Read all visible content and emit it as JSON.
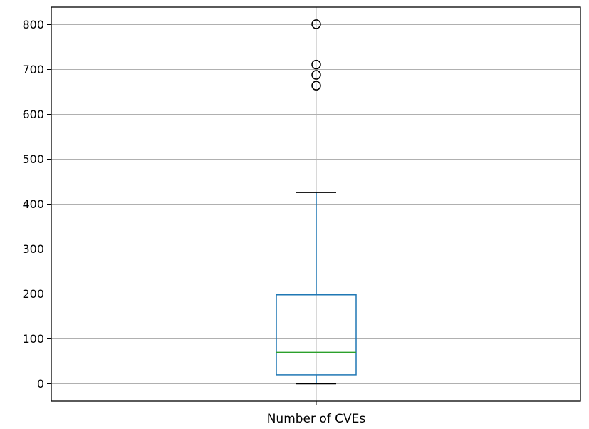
{
  "chart_data": {
    "type": "box",
    "categories": [
      "Number of CVEs"
    ],
    "series": [
      {
        "whisker_low": 0,
        "q1": 20,
        "median": 70,
        "q3": 198,
        "whisker_high": 426,
        "outliers": [
          801,
          711,
          688,
          664
        ]
      }
    ],
    "ylim": [
      -38,
      840
    ],
    "yticks": [
      0,
      100,
      200,
      300,
      400,
      500,
      600,
      700,
      800
    ],
    "grid": true,
    "colors": {
      "box": "#1f77b4",
      "median": "#2ca02c",
      "caps": "#000000",
      "outlier": "#000000",
      "grid": "#b0b0b0"
    }
  }
}
